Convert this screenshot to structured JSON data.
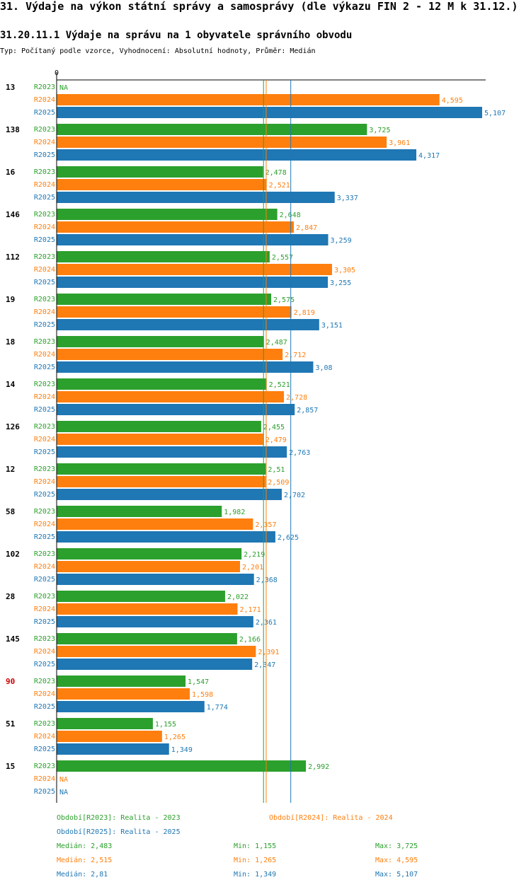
{
  "header": {
    "title": "31. Výdaje na výkon státní správy a samosprávy (dle výkazu FIN 2 - 12 M k 31.12.)",
    "subtitle": "31.20.11.1 Výdaje na správu na 1 obyvatele správního obvodu",
    "info": "Typ: Počítaný podle vzorce, Vyhodnocení: Absolutní hodnoty, Průměr: Medián"
  },
  "colors": {
    "R2023": "#2ca02c",
    "R2024": "#ff7f0e",
    "R2025": "#1f77b4",
    "highlight": "#cc0000"
  },
  "chart_data": {
    "type": "bar",
    "orientation": "horizontal",
    "title": "31.20.11.1 Výdaje na správu na 1 obyvatele správního obvodu",
    "axis_zero_label": "0",
    "xlim": [
      0,
      5107
    ],
    "series_names": [
      "R2023",
      "R2024",
      "R2025"
    ],
    "median_lines": {
      "R2023": 2483,
      "R2024": 2515,
      "R2025": 2810
    },
    "highlighted_category": "90",
    "groups": [
      {
        "label": "13",
        "values": [
          null,
          4595,
          5107
        ],
        "labels": [
          "NA",
          "4,595",
          "5,107"
        ]
      },
      {
        "label": "138",
        "values": [
          3725,
          3961,
          4317
        ],
        "labels": [
          "3,725",
          "3,961",
          "4,317"
        ]
      },
      {
        "label": "16",
        "values": [
          2478,
          2521,
          3337
        ],
        "labels": [
          "2,478",
          "2,521",
          "3,337"
        ]
      },
      {
        "label": "146",
        "values": [
          2648,
          2847,
          3259
        ],
        "labels": [
          "2,648",
          "2,847",
          "3,259"
        ]
      },
      {
        "label": "112",
        "values": [
          2557,
          3305,
          3255
        ],
        "labels": [
          "2,557",
          "3,305",
          "3,255"
        ]
      },
      {
        "label": "19",
        "values": [
          2575,
          2819,
          3151
        ],
        "labels": [
          "2,575",
          "2,819",
          "3,151"
        ]
      },
      {
        "label": "18",
        "values": [
          2487,
          2712,
          3080
        ],
        "labels": [
          "2,487",
          "2,712",
          "3,08"
        ]
      },
      {
        "label": "14",
        "values": [
          2521,
          2728,
          2857
        ],
        "labels": [
          "2,521",
          "2,728",
          "2,857"
        ]
      },
      {
        "label": "126",
        "values": [
          2455,
          2479,
          2763
        ],
        "labels": [
          "2,455",
          "2,479",
          "2,763"
        ]
      },
      {
        "label": "12",
        "values": [
          2510,
          2509,
          2702
        ],
        "labels": [
          "2,51",
          "2,509",
          "2,702"
        ]
      },
      {
        "label": "58",
        "values": [
          1982,
          2357,
          2625
        ],
        "labels": [
          "1,982",
          "2,357",
          "2,625"
        ]
      },
      {
        "label": "102",
        "values": [
          2219,
          2201,
          2368
        ],
        "labels": [
          "2,219",
          "2,201",
          "2,368"
        ]
      },
      {
        "label": "28",
        "values": [
          2022,
          2171,
          2361
        ],
        "labels": [
          "2,022",
          "2,171",
          "2,361"
        ]
      },
      {
        "label": "145",
        "values": [
          2166,
          2391,
          2347
        ],
        "labels": [
          "2,166",
          "2,391",
          "2,347"
        ]
      },
      {
        "label": "90",
        "values": [
          1547,
          1598,
          1774
        ],
        "labels": [
          "1,547",
          "1,598",
          "1,774"
        ]
      },
      {
        "label": "51",
        "values": [
          1155,
          1265,
          1349
        ],
        "labels": [
          "1,155",
          "1,265",
          "1,349"
        ]
      },
      {
        "label": "15",
        "values": [
          2992,
          null,
          null
        ],
        "labels": [
          "2,992",
          "NA",
          "NA"
        ]
      }
    ]
  },
  "legend": {
    "period_2023": "Období[R2023]: Realita - 2023",
    "period_2024": "Období[R2024]: Realita - 2024",
    "period_2025": "Období[R2025]: Realita - 2025",
    "stats": [
      {
        "median": "Medián: 2,483",
        "min": "Min: 1,155",
        "max": "Max: 3,725"
      },
      {
        "median": "Medián: 2,515",
        "min": "Min: 1,265",
        "max": "Max: 4,595"
      },
      {
        "median": "Medián: 2,81",
        "min": "Min: 1,349",
        "max": "Max: 5,107"
      }
    ]
  }
}
